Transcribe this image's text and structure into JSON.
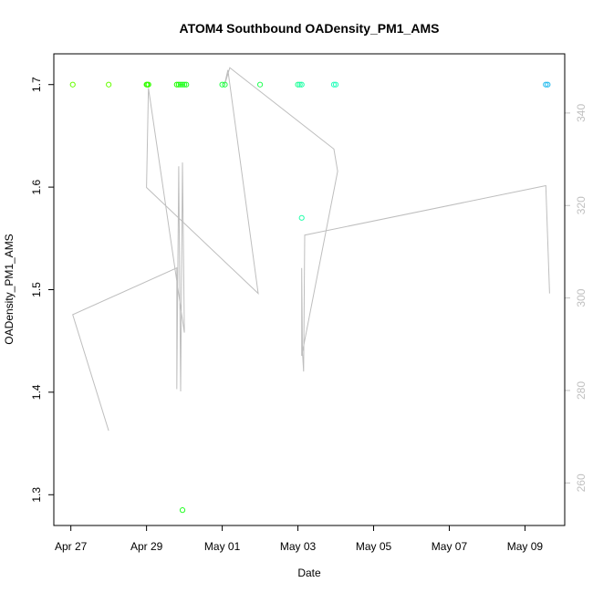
{
  "chart_data": {
    "type": "scatter",
    "title": "ATOM4 Southbound OADensity_PM1_AMS",
    "xlabel": "Date",
    "ylabel": "OADensity_PM1_AMS",
    "x_ticks": [
      {
        "label": "Apr 27",
        "day": 0
      },
      {
        "label": "Apr 29",
        "day": 2
      },
      {
        "label": "May 01",
        "day": 4
      },
      {
        "label": "May 03",
        "day": 6
      },
      {
        "label": "May 05",
        "day": 8
      },
      {
        "label": "May 07",
        "day": 10
      },
      {
        "label": "May 09",
        "day": 12
      }
    ],
    "xlim_days_since_apr27": [
      -0.45,
      13.05
    ],
    "y_ticks": [
      1.3,
      1.4,
      1.5,
      1.6,
      1.7
    ],
    "ylim": [
      1.27,
      1.73
    ],
    "y2_ticks": [
      260,
      280,
      300,
      320,
      340
    ],
    "y2lim": [
      250.8,
      352.8
    ],
    "points": [
      {
        "x": 0.05,
        "y": 1.7,
        "color": "#66ff00"
      },
      {
        "x": 1.0,
        "y": 1.7,
        "color": "#66ff00"
      },
      {
        "x": 2.0,
        "y": 1.7,
        "color": "#33ff00"
      },
      {
        "x": 2.02,
        "y": 1.7,
        "color": "#33ff00"
      },
      {
        "x": 2.05,
        "y": 1.7,
        "color": "#33ff00"
      },
      {
        "x": 2.8,
        "y": 1.7,
        "color": "#22ff00"
      },
      {
        "x": 2.85,
        "y": 1.7,
        "color": "#22ff00"
      },
      {
        "x": 2.9,
        "y": 1.7,
        "color": "#22ff22"
      },
      {
        "x": 2.95,
        "y": 1.7,
        "color": "#22ff22"
      },
      {
        "x": 3.0,
        "y": 1.7,
        "color": "#22ff22"
      },
      {
        "x": 3.05,
        "y": 1.7,
        "color": "#22ff22"
      },
      {
        "x": 2.95,
        "y": 1.285,
        "color": "#22ff22"
      },
      {
        "x": 4.0,
        "y": 1.7,
        "color": "#22ff44"
      },
      {
        "x": 4.07,
        "y": 1.7,
        "color": "#22ff44"
      },
      {
        "x": 5.0,
        "y": 1.7,
        "color": "#22ff55"
      },
      {
        "x": 6.0,
        "y": 1.7,
        "color": "#22ff88"
      },
      {
        "x": 6.05,
        "y": 1.7,
        "color": "#22ffaa"
      },
      {
        "x": 6.1,
        "y": 1.7,
        "color": "#22ffaa"
      },
      {
        "x": 6.1,
        "y": 1.57,
        "color": "#22ffaa"
      },
      {
        "x": 6.95,
        "y": 1.7,
        "color": "#22ffbb"
      },
      {
        "x": 7.0,
        "y": 1.7,
        "color": "#22ffbb"
      },
      {
        "x": 12.55,
        "y": 1.7,
        "color": "#22bbee"
      },
      {
        "x": 12.6,
        "y": 1.7,
        "color": "#22bbee"
      }
    ],
    "line_series_y2": [
      {
        "x": 0.05,
        "y": 296.4
      },
      {
        "x": 1.0,
        "y": 271.3
      },
      {
        "x": 0.05,
        "y": 296.4
      },
      {
        "x": 2.8,
        "y": 306.5
      },
      {
        "x": 2.8,
        "y": 280.3
      },
      {
        "x": 2.85,
        "y": 328.5
      },
      {
        "x": 2.9,
        "y": 279.8
      },
      {
        "x": 2.95,
        "y": 329.3
      },
      {
        "x": 3.0,
        "y": 292.5
      },
      {
        "x": 2.05,
        "y": 345.4
      },
      {
        "x": 2.0,
        "y": 323.9
      },
      {
        "x": 4.95,
        "y": 301.0
      },
      {
        "x": 4.15,
        "y": 349.3
      },
      {
        "x": 4.05,
        "y": 345.8
      },
      {
        "x": 4.2,
        "y": 349.8
      },
      {
        "x": 6.95,
        "y": 332.2
      },
      {
        "x": 7.05,
        "y": 327.4
      },
      {
        "x": 6.1,
        "y": 287.5
      },
      {
        "x": 6.1,
        "y": 306.5
      },
      {
        "x": 6.12,
        "y": 288.4
      },
      {
        "x": 6.15,
        "y": 284.1
      },
      {
        "x": 6.18,
        "y": 313.6
      },
      {
        "x": 12.55,
        "y": 324.3
      },
      {
        "x": 12.65,
        "y": 301.0
      }
    ]
  }
}
